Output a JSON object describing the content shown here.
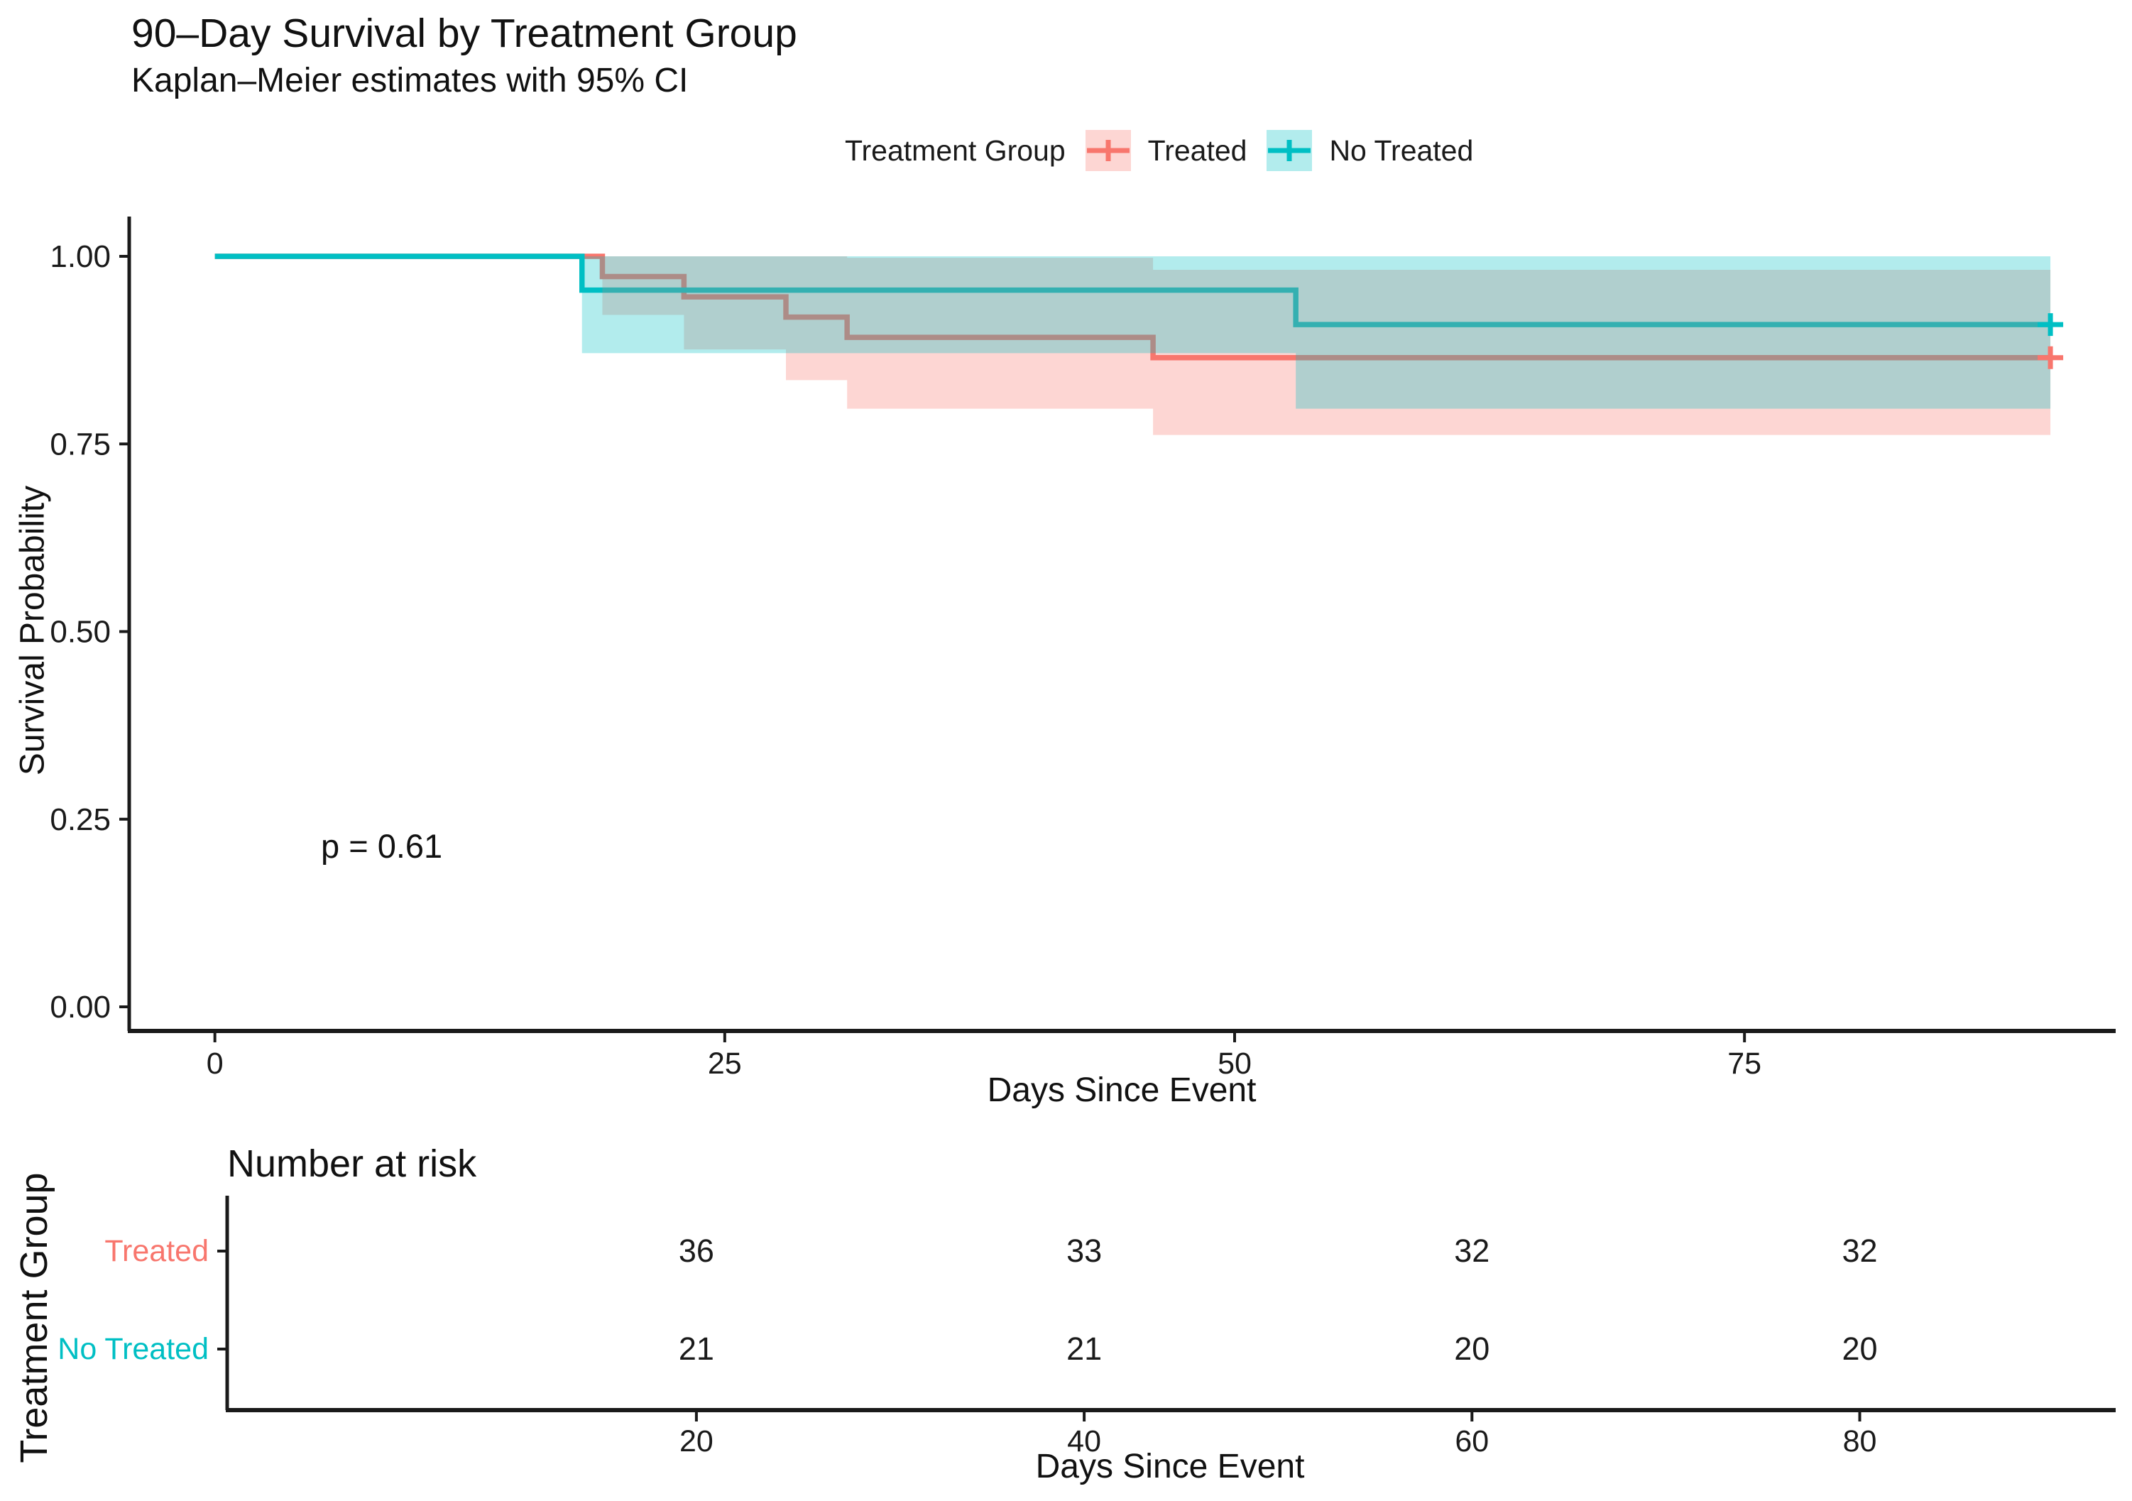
{
  "chart_data": {
    "type": "km_survival_step",
    "title": "90–Day Survival by Treatment Group",
    "subtitle": "Kaplan–Meier estimates with 95% CI",
    "xlabel": "Days Since Event",
    "ylabel": "Survival Probability",
    "legend_title": "Treatment Group",
    "pvalue": "p = 0.61",
    "x_domain": [
      -4.2,
      93.2
    ],
    "x_ticks": [
      0,
      25,
      50,
      75
    ],
    "y_ticks": [
      {
        "value": 1.0,
        "label": "1.00"
      },
      {
        "value": 0.75,
        "label": "0.75"
      },
      {
        "value": 0.5,
        "label": "0.50"
      },
      {
        "value": 0.25,
        "label": "0.25"
      },
      {
        "value": 0.0,
        "label": "0.00"
      }
    ],
    "grid": false,
    "legend_position": "top",
    "series": [
      {
        "name": "Treated",
        "color": "#F8766D",
        "ci_opacity": 0.3,
        "steps": [
          [
            0,
            1.0
          ],
          [
            19,
            1.0
          ],
          [
            19,
            0.973
          ],
          [
            23,
            0.973
          ],
          [
            23,
            0.946
          ],
          [
            28,
            0.946
          ],
          [
            28,
            0.919
          ],
          [
            31,
            0.919
          ],
          [
            31,
            0.892
          ],
          [
            46,
            0.892
          ],
          [
            46,
            0.865
          ],
          [
            90,
            0.865
          ]
        ],
        "censored": [
          [
            90,
            0.865
          ]
        ],
        "ci_upper": [
          [
            19,
            1.0
          ],
          [
            31,
            1.0
          ],
          [
            31,
            0.998
          ],
          [
            46,
            0.998
          ],
          [
            46,
            0.982
          ],
          [
            90,
            0.982
          ]
        ],
        "ci_lower": [
          [
            19,
            0.922
          ],
          [
            23,
            0.922
          ],
          [
            23,
            0.876
          ],
          [
            28,
            0.876
          ],
          [
            28,
            0.835
          ],
          [
            31,
            0.835
          ],
          [
            31,
            0.797
          ],
          [
            46,
            0.797
          ],
          [
            46,
            0.762
          ],
          [
            90,
            0.762
          ]
        ]
      },
      {
        "name": "No Treated",
        "color": "#00BFC4",
        "ci_opacity": 0.3,
        "steps": [
          [
            0,
            1.0
          ],
          [
            18,
            1.0
          ],
          [
            18,
            0.955
          ],
          [
            53,
            0.955
          ],
          [
            53,
            0.909
          ],
          [
            90,
            0.909
          ]
        ],
        "censored": [
          [
            90,
            0.909
          ]
        ],
        "ci_upper": [
          [
            18,
            1.0
          ],
          [
            90,
            1.0
          ]
        ],
        "ci_lower": [
          [
            18,
            0.871
          ],
          [
            53,
            0.871
          ],
          [
            53,
            0.797
          ],
          [
            90,
            0.797
          ]
        ]
      }
    ],
    "risk_table": {
      "title": "Number at risk",
      "ylabel": "Treatment Group",
      "xlabel": "Days Since Event",
      "x_ticks": [
        20,
        40,
        60,
        80
      ],
      "rows": [
        {
          "label": "Treated",
          "color": "#F8766D",
          "values": [
            "36",
            "33",
            "32",
            "32"
          ]
        },
        {
          "label": "No Treated",
          "color": "#00BFC4",
          "values": [
            "21",
            "21",
            "20",
            "20"
          ]
        }
      ]
    }
  }
}
